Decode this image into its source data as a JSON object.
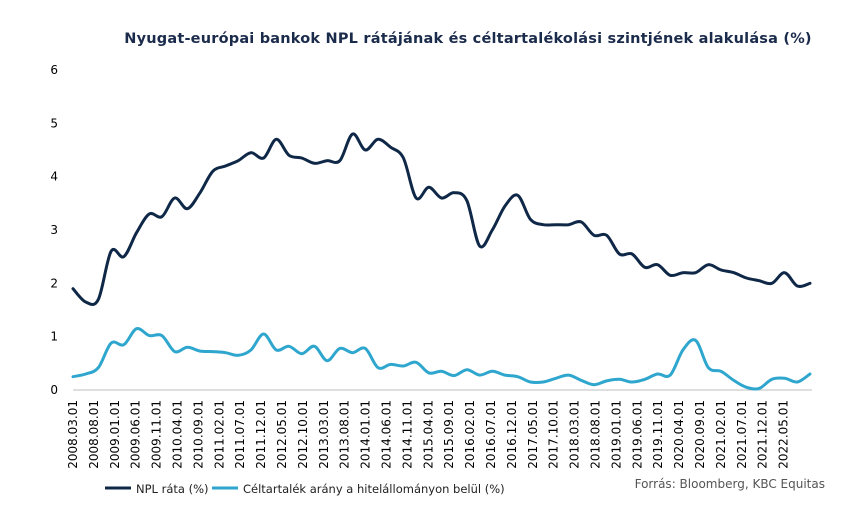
{
  "chart_data": {
    "type": "line",
    "title": "Nyugat-európai bankok NPL rátájának és céltartalékolási szintjének alakulása (%)",
    "xlabel": "",
    "ylabel": "",
    "ylim": [
      0,
      6
    ],
    "yticks": [
      0,
      1,
      2,
      3,
      4,
      5,
      6
    ],
    "grid": false,
    "legend_position": "bottom-left",
    "x_tick_labels": [
      "2008.03.01",
      "2008.08.01",
      "2009.01.01",
      "2009.06.01",
      "2009.11.01",
      "2010.04.01",
      "2010.09.01",
      "2011.02.01",
      "2011.07.01",
      "2011.12.01",
      "2012.05.01",
      "2012.10.01",
      "2013.03.01",
      "2013.08.01",
      "2014.01.01",
      "2014.06.01",
      "2014.11.01",
      "2015.04.01",
      "2015.09.01",
      "2016.02.01",
      "2016.07.01",
      "2016.12.01",
      "2017.05.01",
      "2017.10.01",
      "2018.03.01",
      "2018.08.01",
      "2019.01.01",
      "2019.06.01",
      "2019.11.01",
      "2020.04.01",
      "2020.09.01",
      "2021.02.01",
      "2021.07.01",
      "2021.12.01",
      "2022.05.01"
    ],
    "x_start": "2008.03",
    "x_step_months": 2,
    "series": [
      {
        "name": "NPL ráta (%)",
        "color": "#0f2847",
        "values": [
          1.9,
          1.65,
          1.7,
          2.6,
          2.5,
          2.95,
          3.3,
          3.25,
          3.6,
          3.4,
          3.7,
          4.1,
          4.2,
          4.3,
          4.45,
          4.35,
          4.7,
          4.4,
          4.35,
          4.25,
          4.3,
          4.3,
          4.8,
          4.5,
          4.7,
          4.55,
          4.35,
          3.6,
          3.8,
          3.6,
          3.7,
          3.55,
          2.7,
          3.0,
          3.45,
          3.65,
          3.2,
          3.1,
          3.1,
          3.1,
          3.15,
          2.9,
          2.9,
          2.55,
          2.55,
          2.3,
          2.35,
          2.15,
          2.2,
          2.2,
          2.35,
          2.25,
          2.2,
          2.1,
          2.05,
          2.0,
          2.2,
          1.95,
          2.0
        ]
      },
      {
        "name": "Céltartalék arány a hitelállományon belül (%)",
        "color": "#2ea6cd",
        "values": [
          0.25,
          0.3,
          0.42,
          0.88,
          0.85,
          1.15,
          1.02,
          1.02,
          0.72,
          0.8,
          0.73,
          0.72,
          0.7,
          0.65,
          0.75,
          1.05,
          0.75,
          0.82,
          0.68,
          0.82,
          0.55,
          0.78,
          0.7,
          0.78,
          0.42,
          0.48,
          0.45,
          0.52,
          0.32,
          0.35,
          0.27,
          0.38,
          0.28,
          0.35,
          0.28,
          0.25,
          0.15,
          0.15,
          0.22,
          0.28,
          0.18,
          0.1,
          0.17,
          0.2,
          0.15,
          0.2,
          0.3,
          0.28,
          0.75,
          0.93,
          0.42,
          0.35,
          0.18,
          0.05,
          0.03,
          0.2,
          0.22,
          0.15,
          0.3
        ]
      }
    ]
  },
  "legend": {
    "npl_label": "NPL ráta (%)",
    "reserve_label": "Céltartalék arány a hitelállományon belül (%)"
  },
  "source": "Forrás: Bloomberg, KBC Equitas"
}
